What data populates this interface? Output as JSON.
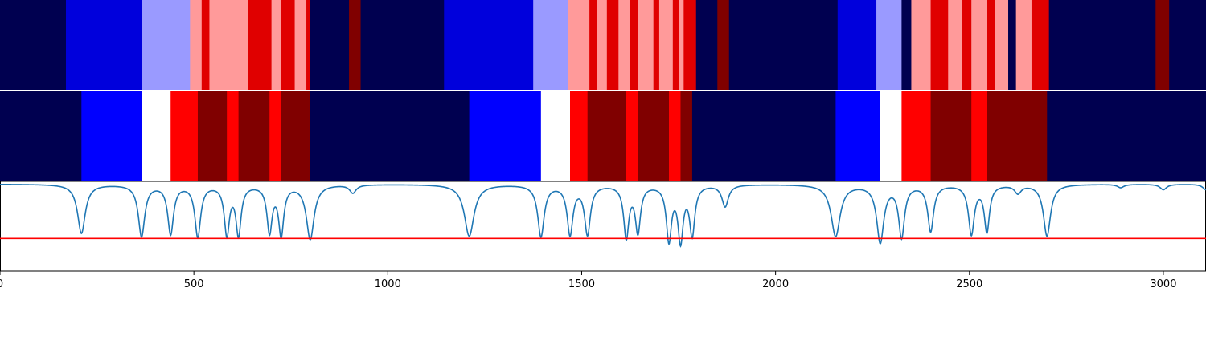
{
  "chart_data": [
    {
      "type": "heatmap",
      "xlim": [
        0,
        3110
      ],
      "segments": [
        {
          "x0": 0,
          "x1": 170,
          "color": "#000050"
        },
        {
          "x0": 170,
          "x1": 365,
          "color": "#0000dc"
        },
        {
          "x0": 365,
          "x1": 490,
          "color": "#9a9aff"
        },
        {
          "x0": 490,
          "x1": 520,
          "color": "#ff9a9a"
        },
        {
          "x0": 520,
          "x1": 540,
          "color": "#e00000"
        },
        {
          "x0": 540,
          "x1": 640,
          "color": "#ff9a9a"
        },
        {
          "x0": 640,
          "x1": 700,
          "color": "#e00000"
        },
        {
          "x0": 700,
          "x1": 725,
          "color": "#ff9a9a"
        },
        {
          "x0": 725,
          "x1": 760,
          "color": "#e00000"
        },
        {
          "x0": 760,
          "x1": 790,
          "color": "#ff9a9a"
        },
        {
          "x0": 790,
          "x1": 800,
          "color": "#e00000"
        },
        {
          "x0": 800,
          "x1": 900,
          "color": "#000050"
        },
        {
          "x0": 900,
          "x1": 930,
          "color": "#800000"
        },
        {
          "x0": 930,
          "x1": 1145,
          "color": "#000050"
        },
        {
          "x0": 1145,
          "x1": 1375,
          "color": "#0000dc"
        },
        {
          "x0": 1375,
          "x1": 1465,
          "color": "#9a9aff"
        },
        {
          "x0": 1465,
          "x1": 1520,
          "color": "#ff9a9a"
        },
        {
          "x0": 1520,
          "x1": 1540,
          "color": "#e00000"
        },
        {
          "x0": 1540,
          "x1": 1565,
          "color": "#ff9a9a"
        },
        {
          "x0": 1565,
          "x1": 1595,
          "color": "#e00000"
        },
        {
          "x0": 1595,
          "x1": 1625,
          "color": "#ff9a9a"
        },
        {
          "x0": 1625,
          "x1": 1645,
          "color": "#e00000"
        },
        {
          "x0": 1645,
          "x1": 1685,
          "color": "#ff9a9a"
        },
        {
          "x0": 1685,
          "x1": 1700,
          "color": "#e00000"
        },
        {
          "x0": 1700,
          "x1": 1735,
          "color": "#ff9a9a"
        },
        {
          "x0": 1735,
          "x1": 1752,
          "color": "#e00000"
        },
        {
          "x0": 1752,
          "x1": 1763,
          "color": "#ff9a9a"
        },
        {
          "x0": 1763,
          "x1": 1795,
          "color": "#e00000"
        },
        {
          "x0": 1795,
          "x1": 1850,
          "color": "#000050"
        },
        {
          "x0": 1850,
          "x1": 1880,
          "color": "#800000"
        },
        {
          "x0": 1880,
          "x1": 2160,
          "color": "#000050"
        },
        {
          "x0": 2160,
          "x1": 2260,
          "color": "#0000dc"
        },
        {
          "x0": 2260,
          "x1": 2325,
          "color": "#9a9aff"
        },
        {
          "x0": 2325,
          "x1": 2350,
          "color": "#000050"
        },
        {
          "x0": 2350,
          "x1": 2400,
          "color": "#ff9a9a"
        },
        {
          "x0": 2400,
          "x1": 2445,
          "color": "#e00000"
        },
        {
          "x0": 2445,
          "x1": 2480,
          "color": "#ff9a9a"
        },
        {
          "x0": 2480,
          "x1": 2505,
          "color": "#e00000"
        },
        {
          "x0": 2505,
          "x1": 2545,
          "color": "#ff9a9a"
        },
        {
          "x0": 2545,
          "x1": 2565,
          "color": "#e00000"
        },
        {
          "x0": 2565,
          "x1": 2600,
          "color": "#ff9a9a"
        },
        {
          "x0": 2600,
          "x1": 2620,
          "color": "#000050"
        },
        {
          "x0": 2620,
          "x1": 2660,
          "color": "#ff9a9a"
        },
        {
          "x0": 2660,
          "x1": 2705,
          "color": "#e00000"
        },
        {
          "x0": 2705,
          "x1": 2980,
          "color": "#000050"
        },
        {
          "x0": 2980,
          "x1": 3015,
          "color": "#800000"
        },
        {
          "x0": 3015,
          "x1": 3110,
          "color": "#000050"
        }
      ]
    },
    {
      "type": "heatmap",
      "xlim": [
        0,
        3110
      ],
      "segments": [
        {
          "x0": 0,
          "x1": 210,
          "color": "#000050"
        },
        {
          "x0": 210,
          "x1": 365,
          "color": "#0000ff"
        },
        {
          "x0": 365,
          "x1": 440,
          "color": "#ffffff"
        },
        {
          "x0": 440,
          "x1": 510,
          "color": "#ff0000"
        },
        {
          "x0": 510,
          "x1": 585,
          "color": "#800000"
        },
        {
          "x0": 585,
          "x1": 615,
          "color": "#ff0000"
        },
        {
          "x0": 615,
          "x1": 695,
          "color": "#800000"
        },
        {
          "x0": 695,
          "x1": 725,
          "color": "#ff0000"
        },
        {
          "x0": 725,
          "x1": 800,
          "color": "#800000"
        },
        {
          "x0": 800,
          "x1": 1210,
          "color": "#000050"
        },
        {
          "x0": 1210,
          "x1": 1395,
          "color": "#0000ff"
        },
        {
          "x0": 1395,
          "x1": 1470,
          "color": "#ffffff"
        },
        {
          "x0": 1470,
          "x1": 1515,
          "color": "#ff0000"
        },
        {
          "x0": 1515,
          "x1": 1615,
          "color": "#800000"
        },
        {
          "x0": 1615,
          "x1": 1645,
          "color": "#ff0000"
        },
        {
          "x0": 1645,
          "x1": 1725,
          "color": "#800000"
        },
        {
          "x0": 1725,
          "x1": 1755,
          "color": "#ff0000"
        },
        {
          "x0": 1755,
          "x1": 1785,
          "color": "#800000"
        },
        {
          "x0": 1785,
          "x1": 2155,
          "color": "#000050"
        },
        {
          "x0": 2155,
          "x1": 2270,
          "color": "#0000ff"
        },
        {
          "x0": 2270,
          "x1": 2325,
          "color": "#ffffff"
        },
        {
          "x0": 2325,
          "x1": 2400,
          "color": "#ff0000"
        },
        {
          "x0": 2400,
          "x1": 2505,
          "color": "#800000"
        },
        {
          "x0": 2505,
          "x1": 2545,
          "color": "#ff0000"
        },
        {
          "x0": 2545,
          "x1": 2700,
          "color": "#800000"
        },
        {
          "x0": 2700,
          "x1": 3110,
          "color": "#000050"
        }
      ]
    },
    {
      "type": "line",
      "xlim": [
        0,
        3110
      ],
      "ylim": [
        -1.6,
        0.05
      ],
      "xticks": [
        0,
        500,
        1000,
        1500,
        2000,
        2500,
        3000
      ],
      "grid": false,
      "series": [
        {
          "color": "#1f77b4",
          "dips": [
            {
              "x": 210,
              "depth": 0.9,
              "w": 12
            },
            {
              "x": 365,
              "depth": 0.95,
              "w": 10
            },
            {
              "x": 440,
              "depth": 0.9,
              "w": 9
            },
            {
              "x": 510,
              "depth": 0.95,
              "w": 9
            },
            {
              "x": 585,
              "depth": 0.9,
              "w": 8
            },
            {
              "x": 615,
              "depth": 0.9,
              "w": 8
            },
            {
              "x": 695,
              "depth": 0.85,
              "w": 8
            },
            {
              "x": 725,
              "depth": 0.9,
              "w": 8
            },
            {
              "x": 800,
              "depth": 1.0,
              "w": 12
            },
            {
              "x": 910,
              "depth": 0.15,
              "w": 10
            },
            {
              "x": 1210,
              "depth": 0.95,
              "w": 15
            },
            {
              "x": 1395,
              "depth": 0.95,
              "w": 10
            },
            {
              "x": 1470,
              "depth": 0.9,
              "w": 9
            },
            {
              "x": 1515,
              "depth": 0.9,
              "w": 9
            },
            {
              "x": 1615,
              "depth": 0.95,
              "w": 8
            },
            {
              "x": 1645,
              "depth": 0.85,
              "w": 8
            },
            {
              "x": 1725,
              "depth": 1.0,
              "w": 8
            },
            {
              "x": 1755,
              "depth": 1.0,
              "w": 8
            },
            {
              "x": 1785,
              "depth": 0.9,
              "w": 8
            },
            {
              "x": 1870,
              "depth": 0.4,
              "w": 10
            },
            {
              "x": 2155,
              "depth": 0.95,
              "w": 14
            },
            {
              "x": 2270,
              "depth": 1.05,
              "w": 11
            },
            {
              "x": 2325,
              "depth": 0.95,
              "w": 9
            },
            {
              "x": 2400,
              "depth": 0.85,
              "w": 9
            },
            {
              "x": 2505,
              "depth": 0.9,
              "w": 9
            },
            {
              "x": 2545,
              "depth": 0.85,
              "w": 8
            },
            {
              "x": 2625,
              "depth": 0.15,
              "w": 10
            },
            {
              "x": 2700,
              "depth": 0.95,
              "w": 11
            },
            {
              "x": 2890,
              "depth": 0.06,
              "w": 10
            },
            {
              "x": 3000,
              "depth": 0.1,
              "w": 10
            },
            {
              "x": 3110,
              "depth": 0.1,
              "w": 10
            }
          ]
        }
      ],
      "threshold": {
        "y": -1.0,
        "color": "#ff0000"
      }
    }
  ]
}
